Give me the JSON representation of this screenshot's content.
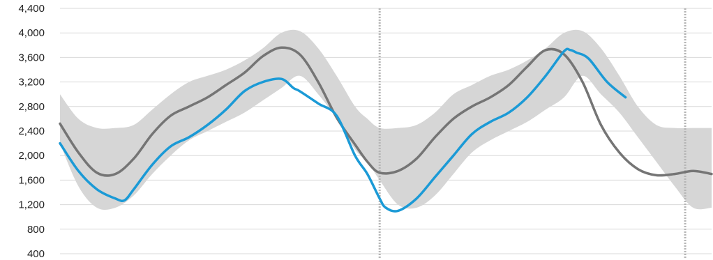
{
  "chart_data": {
    "type": "area",
    "title": "",
    "xlabel": "",
    "ylabel": "",
    "ylim": [
      400,
      4400
    ],
    "y_ticks": [
      400,
      800,
      1200,
      1600,
      2000,
      2400,
      2800,
      3200,
      3600,
      4000,
      4400
    ],
    "y_tick_labels": [
      "400",
      "800",
      "1,200",
      "1,600",
      "2,000",
      "2,400",
      "2,800",
      "3,200",
      "3,600",
      "4,000",
      "4,400"
    ],
    "grid": true,
    "legend": "none",
    "x_range": [
      0,
      106
    ],
    "period_dividers": [
      52,
      101.7
    ],
    "colors": {
      "band": "#d6d6d6",
      "average": "#757575",
      "current": "#1b9ad6",
      "grid": "#d9d9d9",
      "divider": "#b5b5b5"
    },
    "series": [
      {
        "role": "band",
        "x": [
          0,
          3,
          6,
          9,
          12,
          15,
          18,
          21,
          24,
          27,
          30,
          33,
          36,
          39,
          42,
          45,
          48,
          50,
          52,
          55,
          58,
          61,
          64,
          67,
          70,
          73,
          76,
          79,
          82,
          85,
          88,
          91,
          94,
          97,
          100,
          103,
          106
        ],
        "upper": [
          3000,
          2600,
          2450,
          2450,
          2500,
          2750,
          3000,
          3200,
          3300,
          3400,
          3550,
          3750,
          4000,
          4030,
          3750,
          3300,
          2800,
          2600,
          2450,
          2450,
          2500,
          2700,
          3000,
          3150,
          3300,
          3400,
          3550,
          3750,
          4000,
          4030,
          3750,
          3300,
          2800,
          2500,
          2450,
          2450,
          2450
        ],
        "lower": [
          2200,
          1500,
          1150,
          1150,
          1350,
          1700,
          2000,
          2250,
          2400,
          2550,
          2700,
          2900,
          3100,
          3300,
          3000,
          2600,
          2100,
          1900,
          1600,
          1200,
          1150,
          1350,
          1700,
          2050,
          2250,
          2400,
          2550,
          2750,
          2950,
          3300,
          3000,
          2700,
          2300,
          1900,
          1500,
          1150,
          1150
        ]
      },
      {
        "role": "average",
        "x": [
          0,
          3,
          6,
          9,
          12,
          15,
          18,
          21,
          24,
          27,
          30,
          33,
          36,
          39,
          42,
          45,
          48,
          50,
          52,
          55,
          58,
          61,
          64,
          67,
          70,
          73,
          76,
          79,
          82,
          85,
          88,
          91,
          94,
          97,
          100,
          103,
          106
        ],
        "y": [
          2520,
          2050,
          1720,
          1700,
          1950,
          2350,
          2650,
          2800,
          2950,
          3150,
          3350,
          3620,
          3760,
          3650,
          3200,
          2620,
          2180,
          1900,
          1720,
          1750,
          1950,
          2300,
          2600,
          2800,
          2950,
          3150,
          3450,
          3720,
          3650,
          3200,
          2500,
          2050,
          1780,
          1680,
          1700,
          1750,
          1700
        ],
        "y_fixed_end": true
      },
      {
        "role": "current",
        "x": [
          0,
          3,
          6,
          9,
          10.5,
          12,
          15,
          18,
          21,
          24,
          27,
          30,
          33,
          36,
          38,
          39,
          42,
          45,
          48,
          50,
          52,
          53,
          55,
          58,
          61,
          64,
          67,
          70,
          73,
          76,
          79,
          82,
          83,
          84,
          86,
          89,
          92
        ],
        "y": [
          2200,
          1750,
          1450,
          1300,
          1270,
          1450,
          1850,
          2150,
          2300,
          2500,
          2750,
          3050,
          3200,
          3250,
          3100,
          3050,
          2850,
          2650,
          2000,
          1700,
          1300,
          1150,
          1100,
          1300,
          1650,
          2000,
          2350,
          2550,
          2700,
          2950,
          3300,
          3700,
          3720,
          3680,
          3580,
          3200,
          2950
        ]
      }
    ]
  }
}
